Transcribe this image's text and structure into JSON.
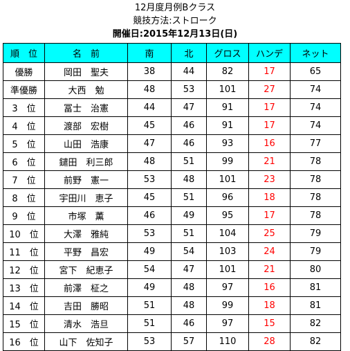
{
  "header": {
    "title": "12月度月例Bクラス",
    "format": "競技方法:ストローク",
    "date": "開催日:2015年12月13日(日)"
  },
  "table": {
    "columns": [
      "順　位",
      "名　前",
      "南",
      "北",
      "グロス",
      "ハンデ",
      "ネット"
    ],
    "rows": [
      {
        "rank": "優勝",
        "name": "岡田　聖夫",
        "south": "38",
        "north": "44",
        "gross": "82",
        "handicap": "17",
        "net": "65"
      },
      {
        "rank": "準優勝",
        "name": "大西　勉",
        "south": "48",
        "north": "53",
        "gross": "101",
        "handicap": "27",
        "net": "74"
      },
      {
        "rank": "3　位",
        "name": "冨士　治憲",
        "south": "44",
        "north": "47",
        "gross": "91",
        "handicap": "17",
        "net": "74"
      },
      {
        "rank": "4　位",
        "name": "渡部　宏樹",
        "south": "45",
        "north": "46",
        "gross": "91",
        "handicap": "17",
        "net": "74"
      },
      {
        "rank": "5　位",
        "name": "山田　浩康",
        "south": "47",
        "north": "46",
        "gross": "93",
        "handicap": "16",
        "net": "77"
      },
      {
        "rank": "6　位",
        "name": "鑓田　利三郎",
        "south": "48",
        "north": "51",
        "gross": "99",
        "handicap": "21",
        "net": "78"
      },
      {
        "rank": "7　位",
        "name": "前野　憲一",
        "south": "53",
        "north": "48",
        "gross": "101",
        "handicap": "23",
        "net": "78"
      },
      {
        "rank": "8　位",
        "name": "宇田川　恵子",
        "south": "45",
        "north": "51",
        "gross": "96",
        "handicap": "18",
        "net": "78"
      },
      {
        "rank": "9　位",
        "name": "市塚　薫",
        "south": "46",
        "north": "49",
        "gross": "95",
        "handicap": "17",
        "net": "78"
      },
      {
        "rank": "10　位",
        "name": "大澤　雅純",
        "south": "53",
        "north": "51",
        "gross": "104",
        "handicap": "25",
        "net": "79"
      },
      {
        "rank": "11　位",
        "name": "平野　昌宏",
        "south": "49",
        "north": "54",
        "gross": "103",
        "handicap": "24",
        "net": "79"
      },
      {
        "rank": "12　位",
        "name": "宮下　紀恵子",
        "south": "54",
        "north": "47",
        "gross": "101",
        "handicap": "21",
        "net": "80"
      },
      {
        "rank": "13　位",
        "name": "前澤　柾之",
        "south": "49",
        "north": "48",
        "gross": "97",
        "handicap": "16",
        "net": "81"
      },
      {
        "rank": "14　位",
        "name": "吉田　勝昭",
        "south": "51",
        "north": "48",
        "gross": "99",
        "handicap": "18",
        "net": "81"
      },
      {
        "rank": "15　位",
        "name": "清水　浩旦",
        "south": "51",
        "north": "46",
        "gross": "97",
        "handicap": "15",
        "net": "82"
      },
      {
        "rank": "16　位",
        "name": "山下　佐知子",
        "south": "53",
        "north": "57",
        "gross": "110",
        "handicap": "28",
        "net": "82"
      }
    ]
  },
  "colors": {
    "header_fill": "#00ffff",
    "handicap_text": "#ff0000",
    "grid_line": "#000000"
  }
}
